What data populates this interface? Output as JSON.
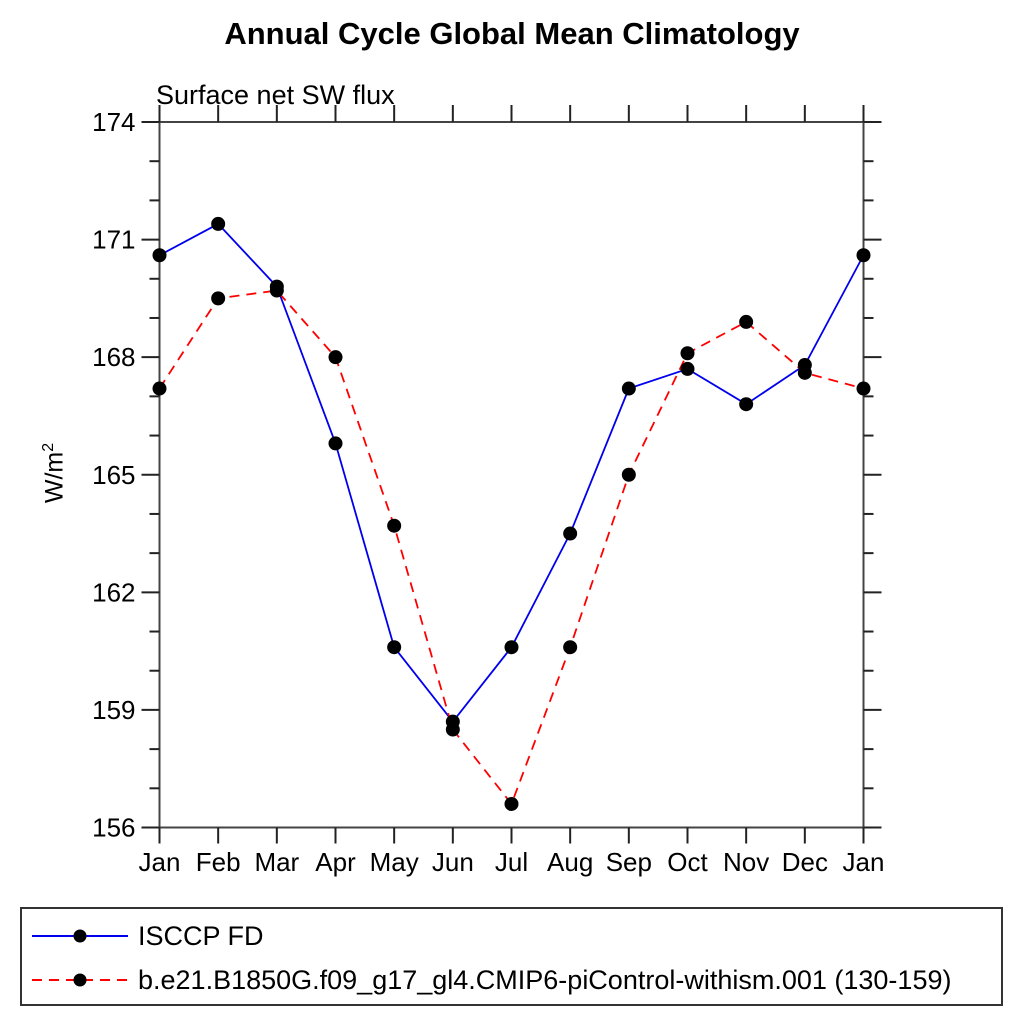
{
  "title": "Annual Cycle Global Mean Climatology",
  "chart_data": {
    "type": "line",
    "title": "Annual Cycle Global Mean Climatology",
    "subtitle": "Surface net SW flux",
    "ylabel": "W/m²",
    "ylabel_base": "W/m",
    "ylabel_sup": "2",
    "categories": [
      "Jan",
      "Feb",
      "Mar",
      "Apr",
      "May",
      "Jun",
      "Jul",
      "Aug",
      "Sep",
      "Oct",
      "Nov",
      "Dec",
      "Jan"
    ],
    "series": [
      {
        "name": "ISCCP FD",
        "color": "#0000ee",
        "line_style": "solid",
        "marker": "circle",
        "marker_color": "#000000",
        "values": [
          170.6,
          171.4,
          169.8,
          165.8,
          160.6,
          158.7,
          160.6,
          163.5,
          167.2,
          167.7,
          166.8,
          167.8,
          170.6
        ]
      },
      {
        "name": "b.e21.B1850G.f09_g17_gl4.CMIP6-piControl-withism.001 (130-159)",
        "color": "#ff0000",
        "line_style": "dashed",
        "marker": "circle",
        "marker_color": "#000000",
        "values": [
          167.2,
          169.5,
          169.7,
          168.0,
          163.7,
          158.5,
          156.6,
          160.6,
          165.0,
          168.1,
          168.9,
          167.6,
          167.2
        ]
      }
    ],
    "ylim": [
      156,
      174
    ],
    "y_major_ticks": [
      174,
      171,
      168,
      165,
      162,
      159,
      156
    ],
    "y_minor_step": 1,
    "xlabel": "",
    "grid": false,
    "legend_position": "bottom",
    "axis_color": "#444444",
    "tick_color": "#222222"
  }
}
